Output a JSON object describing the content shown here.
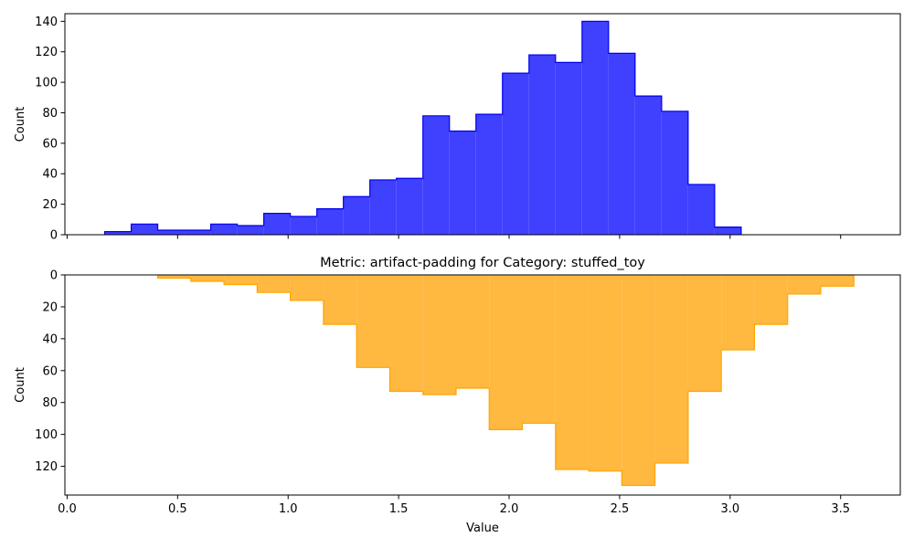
{
  "chart_data": [
    {
      "type": "histogram",
      "title": "",
      "xlabel": "",
      "ylabel": "Count",
      "xlim": [
        -0.01,
        3.77
      ],
      "ylim": [
        0,
        145
      ],
      "inverted_y": false,
      "x_ticks": [
        0.0,
        0.5,
        1.0,
        1.5,
        2.0,
        2.5,
        3.0,
        3.5
      ],
      "x_tick_labels_visible": false,
      "y_ticks": [
        0,
        20,
        40,
        60,
        80,
        100,
        120,
        140
      ],
      "y_tick_labels": [
        "0",
        "20",
        "40",
        "60",
        "80",
        "100",
        "120",
        "140"
      ],
      "color": "#4040ff",
      "edge_color": "#0000ee",
      "bin_edges": [
        0.17,
        0.29,
        0.41,
        0.53,
        0.65,
        0.77,
        0.89,
        1.01,
        1.13,
        1.25,
        1.37,
        1.49,
        1.61,
        1.73,
        1.85,
        1.97,
        2.09,
        2.21,
        2.33,
        2.45,
        2.57,
        2.69,
        2.81,
        2.93,
        3.05
      ],
      "counts": [
        2,
        7,
        3,
        3,
        7,
        6,
        14,
        12,
        17,
        25,
        36,
        37,
        78,
        68,
        79,
        106,
        118,
        113,
        140,
        119,
        91,
        81,
        33,
        5
      ]
    },
    {
      "type": "histogram",
      "title": "Metric: artifact-padding for Category: stuffed_toy",
      "xlabel": "Value",
      "ylabel": "Count",
      "xlim": [
        -0.01,
        3.77
      ],
      "ylim": [
        0,
        138
      ],
      "inverted_y": true,
      "x_ticks": [
        0.0,
        0.5,
        1.0,
        1.5,
        2.0,
        2.5,
        3.0,
        3.5
      ],
      "x_tick_labels": [
        "0.0",
        "0.5",
        "1.0",
        "1.5",
        "2.0",
        "2.5",
        "3.0",
        "3.5"
      ],
      "y_ticks": [
        0,
        20,
        40,
        60,
        80,
        100,
        120
      ],
      "y_tick_labels": [
        "0",
        "20",
        "40",
        "60",
        "80",
        "100",
        "120"
      ],
      "color": "#ffb840",
      "edge_color": "#ffa500",
      "bin_edges": [
        0.41,
        0.56,
        0.71,
        0.86,
        1.01,
        1.16,
        1.31,
        1.46,
        1.61,
        1.76,
        1.91,
        2.06,
        2.21,
        2.36,
        2.51,
        2.66,
        2.81,
        2.96,
        3.11,
        3.26,
        3.41,
        3.56
      ],
      "counts": [
        2,
        4,
        6,
        11,
        16,
        31,
        58,
        73,
        75,
        71,
        97,
        93,
        122,
        123,
        132,
        118,
        73,
        47,
        31,
        12,
        7
      ]
    }
  ]
}
